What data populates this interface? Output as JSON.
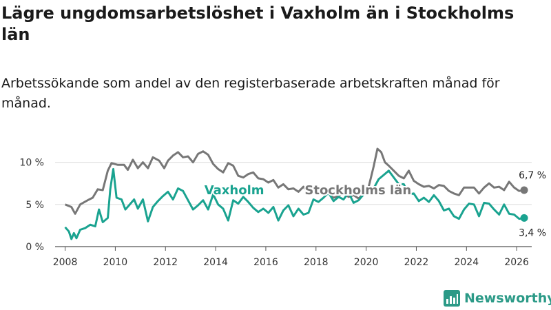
{
  "title": "Lägre ungdomsarbetslöshet i Vaxholm än i Stockholms län",
  "subtitle": "Arbetssökande som andel av den registerbaserade arbetskraften månad för månad.",
  "brand": {
    "name": "Newsworthy",
    "icon": "bar-chart-icon",
    "color": "#2b9a87"
  },
  "chart_data": {
    "type": "line",
    "xlim": [
      2007.6,
      2026.6
    ],
    "ylim": [
      0,
      12.5
    ],
    "x_ticks": [
      2008,
      2010,
      2012,
      2014,
      2016,
      2018,
      2020,
      2022,
      2024,
      2026
    ],
    "x_tick_labels": [
      "2008",
      "2010",
      "2012",
      "2014",
      "2016",
      "2018",
      "2020",
      "2022",
      "2024",
      "2026"
    ],
    "y_ticks": [
      0,
      5,
      10
    ],
    "y_tick_labels": [
      "0 %",
      "5 %",
      "10 %"
    ],
    "grid": "horizontal",
    "series": [
      {
        "name": "Stockholms län",
        "color": "#777777",
        "end_label": "6,7 %",
        "points": [
          [
            2008.0,
            5.0
          ],
          [
            2008.25,
            4.7
          ],
          [
            2008.4,
            3.9
          ],
          [
            2008.6,
            5.0
          ],
          [
            2008.9,
            5.5
          ],
          [
            2009.1,
            5.8
          ],
          [
            2009.3,
            6.8
          ],
          [
            2009.5,
            6.7
          ],
          [
            2009.7,
            9.0
          ],
          [
            2009.85,
            9.9
          ],
          [
            2010.1,
            9.7
          ],
          [
            2010.35,
            9.7
          ],
          [
            2010.5,
            9.1
          ],
          [
            2010.7,
            10.3
          ],
          [
            2010.9,
            9.3
          ],
          [
            2011.1,
            10.0
          ],
          [
            2011.3,
            9.3
          ],
          [
            2011.5,
            10.6
          ],
          [
            2011.75,
            10.2
          ],
          [
            2011.95,
            9.3
          ],
          [
            2012.1,
            10.2
          ],
          [
            2012.3,
            10.8
          ],
          [
            2012.5,
            11.2
          ],
          [
            2012.7,
            10.6
          ],
          [
            2012.9,
            10.7
          ],
          [
            2013.1,
            10.0
          ],
          [
            2013.3,
            11.0
          ],
          [
            2013.5,
            11.3
          ],
          [
            2013.7,
            10.9
          ],
          [
            2013.9,
            9.8
          ],
          [
            2014.1,
            9.2
          ],
          [
            2014.3,
            8.8
          ],
          [
            2014.5,
            9.9
          ],
          [
            2014.7,
            9.6
          ],
          [
            2014.9,
            8.4
          ],
          [
            2015.1,
            8.2
          ],
          [
            2015.3,
            8.6
          ],
          [
            2015.5,
            8.8
          ],
          [
            2015.7,
            8.1
          ],
          [
            2015.9,
            8.0
          ],
          [
            2016.1,
            7.6
          ],
          [
            2016.3,
            7.9
          ],
          [
            2016.5,
            7.0
          ],
          [
            2016.7,
            7.4
          ],
          [
            2016.9,
            6.8
          ],
          [
            2017.1,
            6.9
          ],
          [
            2017.3,
            6.5
          ],
          [
            2017.5,
            7.1
          ],
          [
            2017.7,
            6.3
          ],
          [
            2017.9,
            6.6
          ],
          [
            2018.1,
            7.0
          ],
          [
            2018.3,
            6.2
          ],
          [
            2018.5,
            6.3
          ],
          [
            2018.7,
            5.8
          ],
          [
            2018.9,
            6.0
          ],
          [
            2019.1,
            6.4
          ],
          [
            2019.3,
            5.9
          ],
          [
            2019.5,
            6.1
          ],
          [
            2019.7,
            5.7
          ],
          [
            2019.9,
            6.3
          ],
          [
            2020.1,
            7.1
          ],
          [
            2020.3,
            9.5
          ],
          [
            2020.45,
            11.6
          ],
          [
            2020.6,
            11.2
          ],
          [
            2020.75,
            10.0
          ],
          [
            2020.9,
            9.6
          ],
          [
            2021.1,
            9.0
          ],
          [
            2021.3,
            8.4
          ],
          [
            2021.5,
            8.1
          ],
          [
            2021.7,
            9.0
          ],
          [
            2021.9,
            7.8
          ],
          [
            2022.1,
            7.4
          ],
          [
            2022.3,
            7.1
          ],
          [
            2022.5,
            7.2
          ],
          [
            2022.7,
            6.9
          ],
          [
            2022.9,
            7.3
          ],
          [
            2023.1,
            7.2
          ],
          [
            2023.3,
            6.6
          ],
          [
            2023.5,
            6.3
          ],
          [
            2023.7,
            6.1
          ],
          [
            2023.9,
            7.0
          ],
          [
            2024.1,
            7.0
          ],
          [
            2024.3,
            7.0
          ],
          [
            2024.5,
            6.3
          ],
          [
            2024.7,
            7.0
          ],
          [
            2024.9,
            7.5
          ],
          [
            2025.1,
            7.0
          ],
          [
            2025.3,
            7.1
          ],
          [
            2025.5,
            6.7
          ],
          [
            2025.7,
            7.7
          ],
          [
            2025.9,
            7.0
          ],
          [
            2026.1,
            6.6
          ],
          [
            2026.3,
            6.7
          ]
        ]
      },
      {
        "name": "Vaxholm",
        "color": "#1aa390",
        "end_label": "3,4 %",
        "points": [
          [
            2008.0,
            2.3
          ],
          [
            2008.15,
            1.8
          ],
          [
            2008.25,
            0.9
          ],
          [
            2008.35,
            1.6
          ],
          [
            2008.45,
            1.0
          ],
          [
            2008.6,
            2.0
          ],
          [
            2008.8,
            2.2
          ],
          [
            2009.0,
            2.6
          ],
          [
            2009.2,
            2.4
          ],
          [
            2009.35,
            4.4
          ],
          [
            2009.5,
            2.9
          ],
          [
            2009.7,
            3.4
          ],
          [
            2009.8,
            6.8
          ],
          [
            2009.92,
            9.2
          ],
          [
            2010.05,
            5.8
          ],
          [
            2010.25,
            5.6
          ],
          [
            2010.4,
            4.4
          ],
          [
            2010.55,
            4.9
          ],
          [
            2010.75,
            5.6
          ],
          [
            2010.9,
            4.5
          ],
          [
            2011.1,
            5.6
          ],
          [
            2011.3,
            3.0
          ],
          [
            2011.5,
            4.7
          ],
          [
            2011.7,
            5.4
          ],
          [
            2011.9,
            6.0
          ],
          [
            2012.1,
            6.5
          ],
          [
            2012.3,
            5.6
          ],
          [
            2012.5,
            6.9
          ],
          [
            2012.7,
            6.6
          ],
          [
            2012.9,
            5.5
          ],
          [
            2013.1,
            4.4
          ],
          [
            2013.3,
            4.9
          ],
          [
            2013.5,
            5.5
          ],
          [
            2013.7,
            4.4
          ],
          [
            2013.9,
            6.2
          ],
          [
            2014.1,
            5.0
          ],
          [
            2014.3,
            4.5
          ],
          [
            2014.5,
            3.1
          ],
          [
            2014.7,
            5.5
          ],
          [
            2014.9,
            5.1
          ],
          [
            2015.1,
            5.9
          ],
          [
            2015.3,
            5.3
          ],
          [
            2015.5,
            4.6
          ],
          [
            2015.7,
            4.1
          ],
          [
            2015.9,
            4.5
          ],
          [
            2016.1,
            4.0
          ],
          [
            2016.3,
            4.7
          ],
          [
            2016.5,
            3.1
          ],
          [
            2016.7,
            4.3
          ],
          [
            2016.9,
            4.9
          ],
          [
            2017.1,
            3.6
          ],
          [
            2017.3,
            4.5
          ],
          [
            2017.5,
            3.8
          ],
          [
            2017.7,
            4.0
          ],
          [
            2017.9,
            5.6
          ],
          [
            2018.1,
            5.3
          ],
          [
            2018.3,
            5.8
          ],
          [
            2018.5,
            6.4
          ],
          [
            2018.7,
            5.4
          ],
          [
            2018.9,
            5.9
          ],
          [
            2019.1,
            5.6
          ],
          [
            2019.3,
            6.4
          ],
          [
            2019.5,
            5.2
          ],
          [
            2019.7,
            5.5
          ],
          [
            2019.9,
            6.2
          ],
          [
            2020.1,
            6.3
          ],
          [
            2020.3,
            6.9
          ],
          [
            2020.5,
            8.0
          ],
          [
            2020.7,
            8.5
          ],
          [
            2020.9,
            9.0
          ],
          [
            2021.1,
            8.2
          ],
          [
            2021.3,
            7.4
          ],
          [
            2021.5,
            7.4
          ],
          [
            2021.7,
            6.2
          ],
          [
            2021.9,
            6.3
          ],
          [
            2022.1,
            5.4
          ],
          [
            2022.3,
            5.8
          ],
          [
            2022.5,
            5.3
          ],
          [
            2022.7,
            6.1
          ],
          [
            2022.9,
            5.4
          ],
          [
            2023.1,
            4.3
          ],
          [
            2023.3,
            4.5
          ],
          [
            2023.5,
            3.6
          ],
          [
            2023.7,
            3.3
          ],
          [
            2023.9,
            4.4
          ],
          [
            2024.1,
            5.1
          ],
          [
            2024.3,
            5.0
          ],
          [
            2024.5,
            3.6
          ],
          [
            2024.7,
            5.2
          ],
          [
            2024.9,
            5.1
          ],
          [
            2025.1,
            4.4
          ],
          [
            2025.3,
            3.8
          ],
          [
            2025.5,
            5.0
          ],
          [
            2025.7,
            3.9
          ],
          [
            2025.9,
            3.8
          ],
          [
            2026.1,
            3.3
          ],
          [
            2026.3,
            3.4
          ]
        ]
      }
    ]
  }
}
